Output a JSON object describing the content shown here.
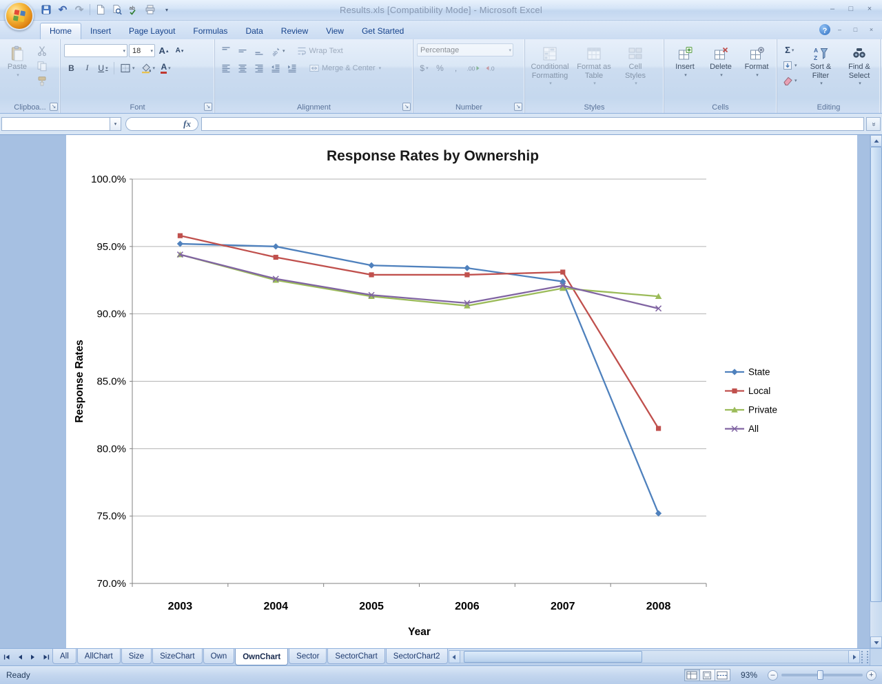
{
  "window": {
    "title": "Results.xls  [Compatibility Mode]  -  Microsoft Excel"
  },
  "glyphs": {
    "undo": "↶",
    "redo": "↷",
    "dropdown": "▾",
    "launcher": "↘",
    "bold": "B",
    "italic": "I",
    "underline": "U",
    "font_letter": "A",
    "grow_arrow": "▴",
    "shrink_arrow": "▾",
    "currency": "$",
    "percent": "%",
    "comma": ",",
    "autosum": "Σ",
    "fx": "fx",
    "help": "?",
    "minimize": "–",
    "maximize": "□",
    "close": "×",
    "expand": "»",
    "minus": "–",
    "plus": "+"
  },
  "ribbon": {
    "tabs": [
      {
        "label": "Home",
        "active": true
      },
      {
        "label": "Insert"
      },
      {
        "label": "Page Layout"
      },
      {
        "label": "Formulas"
      },
      {
        "label": "Data"
      },
      {
        "label": "Review"
      },
      {
        "label": "View"
      },
      {
        "label": "Get Started"
      }
    ],
    "clipboard": {
      "label": "Clipboa...",
      "paste": "Paste"
    },
    "font": {
      "label": "Font",
      "name_value": "",
      "size_value": "18"
    },
    "alignment": {
      "label": "Alignment",
      "wrap_text": "Wrap Text",
      "merge_center": "Merge & Center"
    },
    "number": {
      "label": "Number",
      "format_value": "Percentage"
    },
    "styles": {
      "label": "Styles",
      "conditional_formatting": "Conditional Formatting",
      "format_as_table": "Format as Table",
      "cell_styles": "Cell Styles"
    },
    "cells": {
      "label": "Cells",
      "insert": "Insert",
      "delete": "Delete",
      "format": "Format"
    },
    "editing": {
      "label": "Editing",
      "sort_filter": "Sort & Filter",
      "find_select": "Find & Select"
    }
  },
  "formula_bar": {
    "name_box": "",
    "formula": ""
  },
  "sheet_tabs": [
    {
      "label": "All"
    },
    {
      "label": "AllChart"
    },
    {
      "label": "Size"
    },
    {
      "label": "SizeChart"
    },
    {
      "label": "Own"
    },
    {
      "label": "OwnChart",
      "active": true
    },
    {
      "label": "Sector"
    },
    {
      "label": "SectorChart"
    },
    {
      "label": "SectorChart2"
    }
  ],
  "status_bar": {
    "mode": "Ready",
    "zoom": "93%"
  },
  "chart_data": {
    "type": "line",
    "title": "Response Rates by Ownership",
    "xlabel": "Year",
    "ylabel": "Response Rates",
    "categories": [
      "2003",
      "2004",
      "2005",
      "2006",
      "2007",
      "2008"
    ],
    "series": [
      {
        "name": "State",
        "color": "#4F81BD",
        "marker": "diamond",
        "values": [
          95.2,
          95.0,
          93.6,
          93.4,
          92.4,
          75.2
        ]
      },
      {
        "name": "Local",
        "color": "#C0504D",
        "marker": "square",
        "values": [
          95.8,
          94.2,
          92.9,
          92.9,
          93.1,
          81.5
        ]
      },
      {
        "name": "Private",
        "color": "#9BBB59",
        "marker": "triangle",
        "values": [
          94.4,
          92.5,
          91.3,
          90.6,
          91.9,
          91.3
        ]
      },
      {
        "name": "All",
        "color": "#8064A2",
        "marker": "x",
        "values": [
          94.4,
          92.6,
          91.4,
          90.8,
          92.1,
          90.4
        ]
      }
    ],
    "ylim": [
      70,
      100
    ],
    "ytick_step": 5,
    "ytick_labels": [
      "70.0%",
      "75.0%",
      "80.0%",
      "85.0%",
      "90.0%",
      "95.0%",
      "100.0%"
    ],
    "grid": true,
    "legend_position": "right"
  }
}
